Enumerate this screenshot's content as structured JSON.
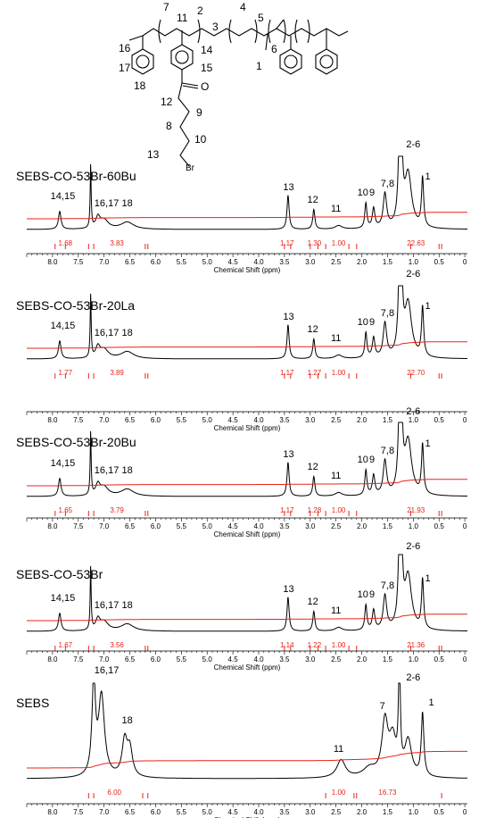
{
  "structure": {
    "numbers": [
      "7",
      "11",
      "2",
      "4",
      "5",
      "3",
      "16",
      "14",
      "17",
      "15",
      "18",
      "1",
      "6",
      "12",
      "9",
      "8",
      "10",
      "13"
    ],
    "atoms": [
      "O",
      "Br"
    ]
  },
  "axis": {
    "xlabel": "Chemical Shift (ppm)",
    "ticks": [
      "8.0",
      "7.5",
      "7.0",
      "6.5",
      "6.0",
      "5.5",
      "5.0",
      "4.5",
      "4.0",
      "3.5",
      "3.0",
      "2.5",
      "2.0",
      "1.5",
      "1.0",
      "0.5",
      "0"
    ]
  },
  "chart_data": [
    {
      "type": "line",
      "title": "SEBS-CO-53Br-60Bu",
      "xlabel": "Chemical Shift (ppm)",
      "xlim": [
        8.5,
        -0.05
      ],
      "peak_labels": [
        "14,15",
        "16,17",
        "18",
        "13",
        "12",
        "11",
        "10",
        "9",
        "7,8",
        "2-6",
        "1"
      ],
      "integrals": [
        "1.68",
        "3.83",
        "1.17",
        "1.30",
        "1.00",
        "22.63"
      ]
    },
    {
      "type": "line",
      "title": "SEBS-CO-53Br-20La",
      "xlabel": "Chemical Shift (ppm)",
      "xlim": [
        8.5,
        -0.05
      ],
      "peak_labels": [
        "14,15",
        "16,17",
        "18",
        "13",
        "12",
        "11",
        "10",
        "9",
        "7,8",
        "2-6",
        "1"
      ],
      "integrals": [
        "1.77",
        "3.89",
        "1.17",
        "1.27",
        "1.00",
        "22.70"
      ]
    },
    {
      "type": "line",
      "title": "SEBS-CO-53Br-20Bu",
      "xlabel": "Chemical Shift (ppm)",
      "xlim": [
        8.5,
        -0.05
      ],
      "peak_labels": [
        "14,15",
        "16,17",
        "18",
        "13",
        "12",
        "11",
        "10",
        "9",
        "7,8",
        "2-6",
        "1"
      ],
      "integrals": [
        "1.65",
        "3.79",
        "1.17",
        "1.28",
        "1.00",
        "21.93"
      ]
    },
    {
      "type": "line",
      "title": "SEBS-CO-53Br",
      "xlabel": "Chemical Shift (ppm)",
      "xlim": [
        8.5,
        -0.05
      ],
      "peak_labels": [
        "14,15",
        "16,17",
        "18",
        "13",
        "12",
        "11",
        "10",
        "9",
        "7,8",
        "2-6",
        "1"
      ],
      "integrals": [
        "1.67",
        "3.56",
        "1.14",
        "1.22",
        "1.00",
        "21.36"
      ]
    },
    {
      "type": "line",
      "title": "SEBS",
      "xlabel": "Chemical Shift (ppm)",
      "xlim": [
        8.5,
        -0.05
      ],
      "peak_labels": [
        "16,17",
        "18",
        "11",
        "7",
        "2-6",
        "1"
      ],
      "integrals": [
        "6.00",
        "1.00",
        "16.73"
      ]
    }
  ],
  "colors": {
    "spectrum": "#000000",
    "integral": "#e8231a"
  }
}
